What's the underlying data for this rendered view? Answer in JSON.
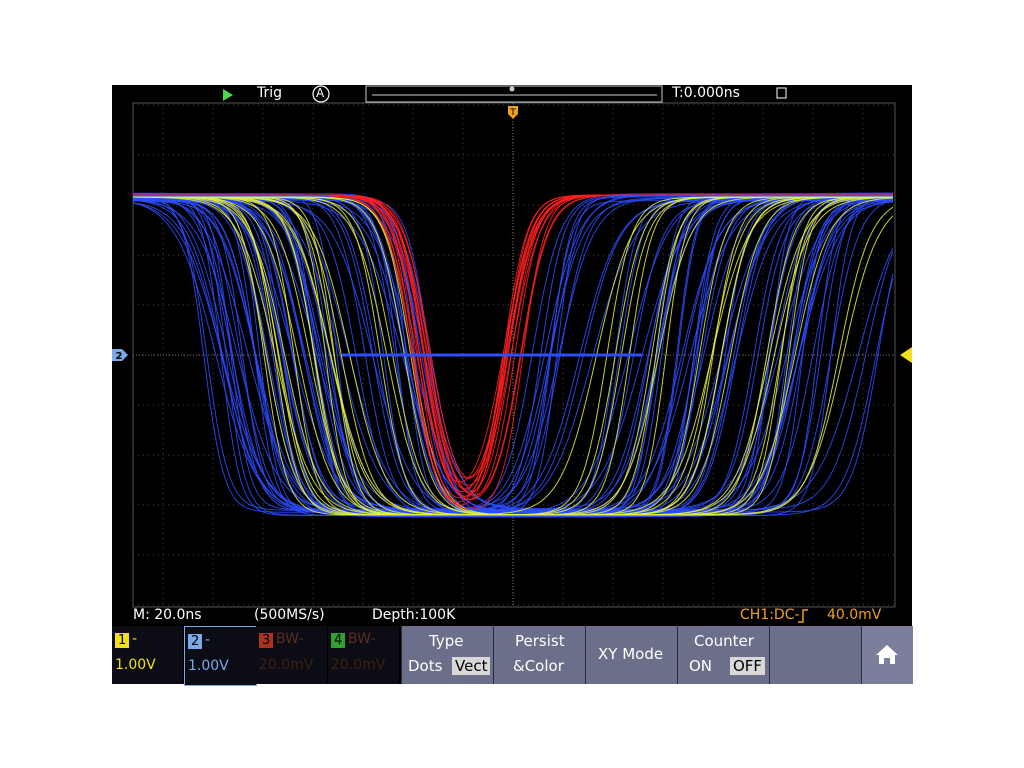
{
  "top_bar": {
    "trigger_status": "Trig",
    "trigger_source": "A",
    "time_offset": "T:0.000ns"
  },
  "markers": {
    "channel": "2",
    "trigger": "T"
  },
  "status_bar": {
    "timebase": "M: 20.0ns",
    "sample_rate": "(500MS/s)",
    "depth": "Depth:100K",
    "trigger_info": "CH1:DC-",
    "trigger_level": "40.0mV"
  },
  "channels": [
    {
      "number": "1",
      "mode": "-",
      "scale": "1.00V"
    },
    {
      "number": "2",
      "mode": "-",
      "scale": "1.00V"
    },
    {
      "number": "3",
      "mode": "BW-",
      "scale": "20.0mV"
    },
    {
      "number": "4",
      "mode": "BW-",
      "scale": "20.0mV"
    }
  ],
  "menu": {
    "type": {
      "label": "Type",
      "options": [
        "Dots",
        "Vect"
      ]
    },
    "persist": {
      "lines": [
        "Persist",
        "&Color"
      ]
    },
    "xy": {
      "label": "XY Mode"
    },
    "counter": {
      "label": "Counter",
      "options": [
        "ON",
        "OFF"
      ]
    }
  }
}
